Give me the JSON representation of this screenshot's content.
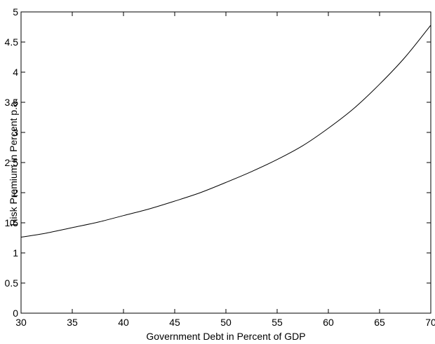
{
  "chart_data": {
    "type": "line",
    "title": "",
    "xlabel": "Government Debt in Percent of GDP",
    "ylabel": "Risk Premium in Percent p.a.",
    "xlim": [
      30,
      70
    ],
    "ylim": [
      0,
      5
    ],
    "grid": false,
    "x_ticks": [
      30,
      35,
      40,
      45,
      50,
      55,
      60,
      65,
      70
    ],
    "y_ticks": [
      0,
      0.5,
      1,
      1.5,
      2,
      2.5,
      3,
      3.5,
      4,
      4.5,
      5
    ],
    "x_tick_labels": [
      "30",
      "35",
      "40",
      "45",
      "50",
      "55",
      "60",
      "65",
      "70"
    ],
    "y_tick_labels": [
      "0",
      "0.5",
      "1",
      "1.5",
      "2",
      "2.5",
      "3",
      "3.5",
      "4",
      "4.5",
      "5"
    ],
    "series": [
      {
        "color": "#000000",
        "x": [
          30,
          32.5,
          35,
          37.5,
          40,
          42.5,
          45,
          47.5,
          50,
          52.5,
          55,
          57.5,
          60,
          62.5,
          65,
          67.5,
          70
        ],
        "y": [
          1.26,
          1.33,
          1.42,
          1.51,
          1.62,
          1.73,
          1.86,
          2.0,
          2.17,
          2.35,
          2.55,
          2.78,
          3.07,
          3.4,
          3.8,
          4.25,
          4.78
        ]
      }
    ]
  }
}
